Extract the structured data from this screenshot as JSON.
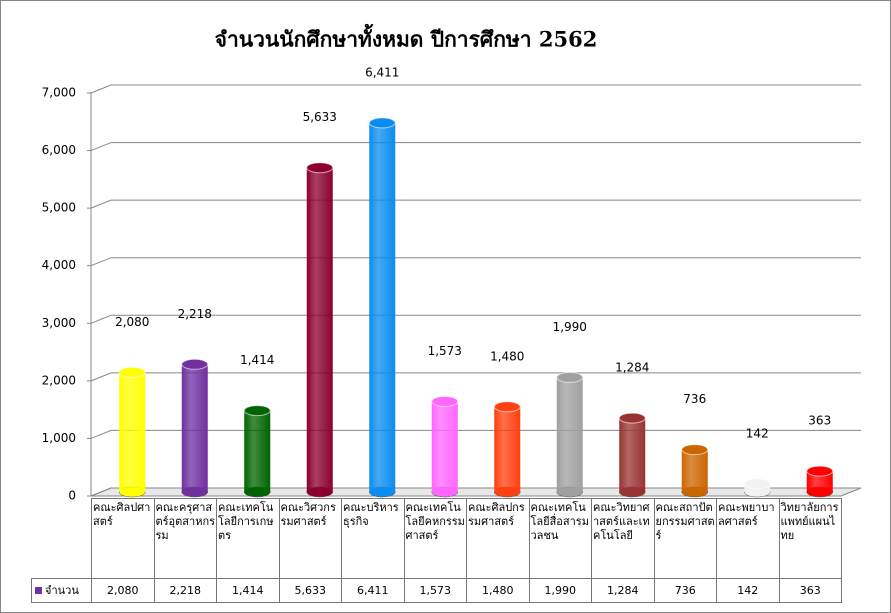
{
  "chart_data": {
    "type": "bar",
    "title": "จำนวนนักศึกษาทั้งหมด ปีการศึกษา 2562",
    "categories": [
      "คณะศิลปศาสตร์",
      "คณะครุศาสตร์อุตสาหกรรม",
      "คณะเทคโนโลยีการเกษตร",
      "คณะวิศวกรรมศาสตร์",
      "คณะบริหารธุรกิจ",
      "คณะเทคโนโลยีคหกรรมศาสตร์",
      "คณะศิลปกรรมศาสตร์",
      "คณะเทคโนโลยีสื่อสารมวลชน",
      "คณะวิทยาศาสตร์และเทคโนโลยี",
      "คณะสถาปัตยกรรมศาสตร์",
      "คณะพยาบาลศาสตร์",
      "วิทยาลัยการแพทย์แผนไทย"
    ],
    "series": [
      {
        "name": "จำนวน",
        "color": "#7030a0",
        "values": [
          2080,
          2218,
          1414,
          5633,
          6411,
          1573,
          1480,
          1990,
          1284,
          736,
          142,
          363
        ],
        "value_labels": [
          "2,080",
          "2,218",
          "1,414",
          "5,633",
          "6,411",
          "1,573",
          "1,480",
          "1,990",
          "1,284",
          "736",
          "142",
          "363"
        ],
        "colors": [
          "#ffff00",
          "#7030a0",
          "#006400",
          "#8b0030",
          "#0a8cf0",
          "#ff66ff",
          "#ff4010",
          "#a0a0a0",
          "#993333",
          "#cc6600",
          "#f2f2f2",
          "#ff0000"
        ]
      }
    ],
    "ylim": [
      0,
      7000
    ],
    "yticks": [
      0,
      {
        "value": 1000,
        "label": "1,000"
      },
      {
        "value": 2000,
        "label": "2,000"
      },
      {
        "value": 3000,
        "label": "3,000"
      },
      {
        "value": 4000,
        "label": "4,000"
      },
      {
        "value": 5000,
        "label": "5,000"
      },
      {
        "value": 6000,
        "label": "6,000"
      },
      {
        "value": 7000,
        "label": "7,000"
      }
    ],
    "grid": true
  }
}
